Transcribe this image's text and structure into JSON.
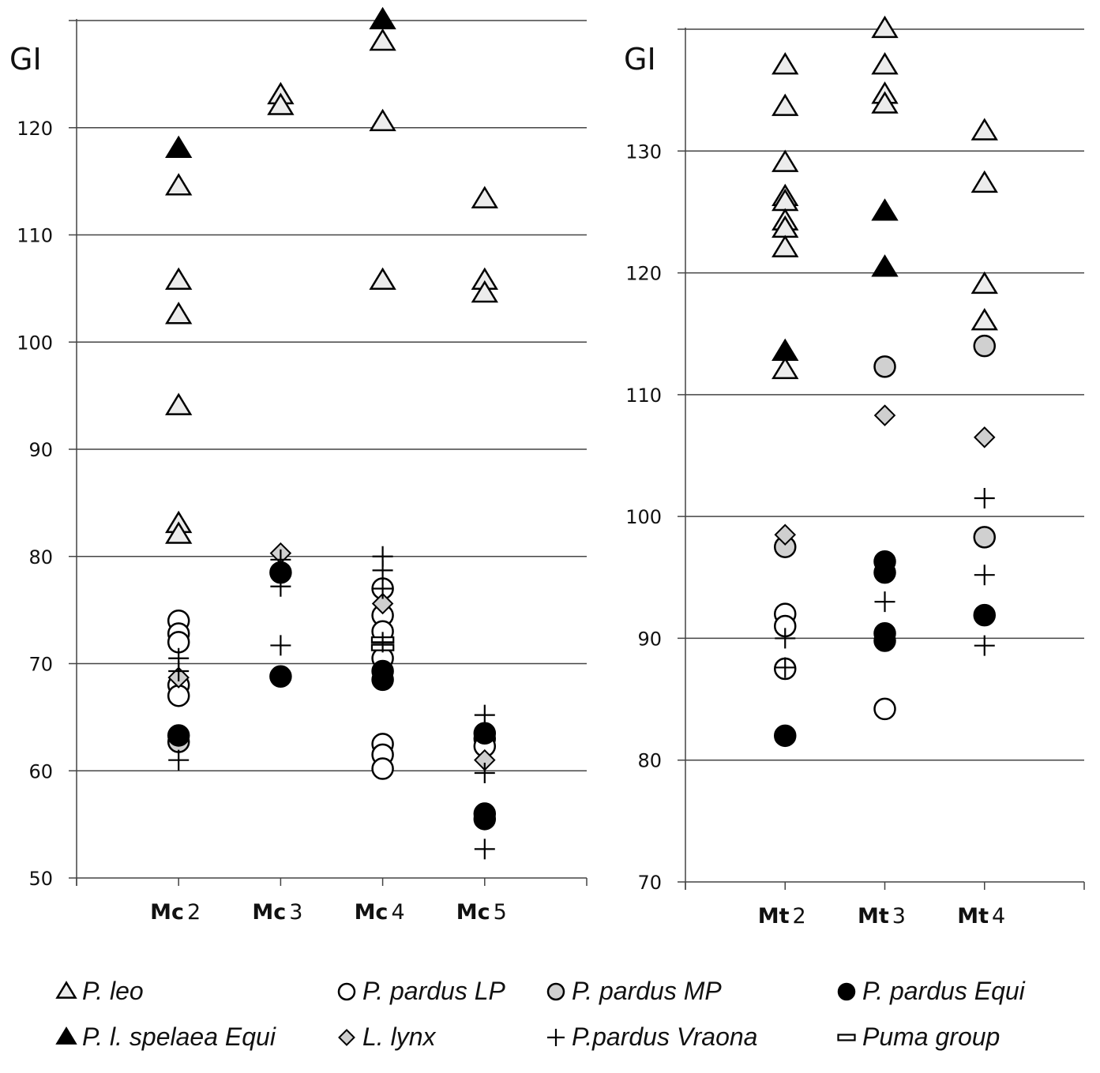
{
  "chart_data": [
    {
      "type": "scatter",
      "panel": "metacarpals",
      "ylabel": "GI",
      "xlabel": "",
      "title": "",
      "ylim": [
        50,
        130
      ],
      "yticks": [
        50,
        60,
        70,
        80,
        90,
        100,
        110,
        120
      ],
      "grid": true,
      "categories": [
        "Mc 2",
        "Mc 3",
        "Mc 4",
        "Mc 5"
      ],
      "series": [
        {
          "name": "P. leo",
          "values": {
            "Mc 2": [
              114.5,
              105.7,
              102.5,
              94,
              83,
              82
            ],
            "Mc 3": [
              123,
              122
            ],
            "Mc 4": [
              128,
              120.5,
              105.7
            ],
            "Mc 5": [
              113.3,
              105.7,
              104.5
            ]
          }
        },
        {
          "name": "P. l. spelaea Equi",
          "values": {
            "Mc 2": [
              118
            ],
            "Mc 3": [],
            "Mc 4": [
              130
            ],
            "Mc 5": []
          }
        },
        {
          "name": "P. pardus LP",
          "values": {
            "Mc 2": [
              74,
              72.8,
              72,
              68,
              67
            ],
            "Mc 3": [],
            "Mc 4": [
              77,
              74.5,
              73,
              70.5,
              62.5,
              61.5,
              60.2
            ],
            "Mc 5": [
              63,
              62.3
            ]
          }
        },
        {
          "name": "P. pardus MP",
          "values": {
            "Mc 2": [
              62.7
            ],
            "Mc 3": [],
            "Mc 4": [],
            "Mc 5": []
          }
        },
        {
          "name": "P. pardus Equi",
          "values": {
            "Mc 2": [
              63.3
            ],
            "Mc 3": [
              78.5,
              68.8
            ],
            "Mc 4": [
              69.3,
              68.5
            ],
            "Mc 5": [
              63.5,
              56,
              55.5
            ]
          }
        },
        {
          "name": "L. lynx",
          "values": {
            "Mc 2": [
              68.7
            ],
            "Mc 3": [
              80.3
            ],
            "Mc 4": [
              75.6
            ],
            "Mc 5": [
              61
            ]
          }
        },
        {
          "name": "P.pardus Vraona",
          "values": {
            "Mc 2": [
              70.5,
              69.3,
              61
            ],
            "Mc 3": [
              79.7,
              77.2,
              71.7
            ],
            "Mc 4": [
              80,
              78.7,
              77,
              72
            ],
            "Mc 5": [
              65.2,
              59.8,
              52.7
            ]
          }
        },
        {
          "name": "Puma group",
          "values": {
            "Mc 2": [],
            "Mc 3": [],
            "Mc 4": [
              72.2,
              71.5
            ],
            "Mc 5": []
          }
        }
      ]
    },
    {
      "type": "scatter",
      "panel": "metatarsals",
      "ylabel": "GI",
      "xlabel": "",
      "title": "",
      "ylim": [
        70,
        140
      ],
      "yticks": [
        70,
        80,
        90,
        100,
        110,
        120,
        130
      ],
      "grid": true,
      "categories": [
        "Mt 2",
        "Mt 3",
        "Mt 4"
      ],
      "series": [
        {
          "name": "P. leo",
          "values": {
            "Mt 2": [
              137,
              133.6,
              129,
              126.2,
              125.8,
              124.2,
              123.6,
              122,
              112
            ],
            "Mt 3": [
              140,
              137,
              134.6,
              133.8
            ],
            "Mt 4": [
              131.6,
              127.3,
              119,
              116
            ]
          }
        },
        {
          "name": "P. l. spelaea Equi",
          "values": {
            "Mt 2": [
              113.5
            ],
            "Mt 3": [
              125,
              120.4
            ],
            "Mt 4": []
          }
        },
        {
          "name": "P. pardus LP",
          "values": {
            "Mt 2": [
              92,
              91,
              87.5
            ],
            "Mt 3": [
              84.2
            ],
            "Mt 4": []
          }
        },
        {
          "name": "P. pardus MP",
          "values": {
            "Mt 2": [
              97.5
            ],
            "Mt 3": [
              112.3
            ],
            "Mt 4": [
              114,
              98.3
            ]
          }
        },
        {
          "name": "P. pardus Equi",
          "values": {
            "Mt 2": [
              82
            ],
            "Mt 3": [
              96.3,
              95.4,
              90.4,
              89.8
            ],
            "Mt 4": [
              91.9
            ]
          }
        },
        {
          "name": "L. lynx",
          "values": {
            "Mt 2": [
              98.5
            ],
            "Mt 3": [
              108.3
            ],
            "Mt 4": [
              106.5
            ]
          }
        },
        {
          "name": "P.pardus Vraona",
          "values": {
            "Mt 2": [
              90,
              87.6
            ],
            "Mt 3": [
              93
            ],
            "Mt 4": [
              101.5,
              95.2,
              89.4
            ]
          }
        },
        {
          "name": "Puma group",
          "values": {
            "Mt 2": [],
            "Mt 3": [],
            "Mt 4": []
          }
        }
      ]
    }
  ],
  "legend": {
    "placement": "bottom",
    "items": [
      {
        "label": "P. leo",
        "marker": "open-triangle"
      },
      {
        "label": "P. pardus LP",
        "marker": "open-circle"
      },
      {
        "label": "P. pardus MP",
        "marker": "grey-circle"
      },
      {
        "label": "P. pardus Equi",
        "marker": "filled-circle"
      },
      {
        "label": "P. l. spelaea Equi",
        "marker": "filled-triangle"
      },
      {
        "label": "L. lynx",
        "marker": "grey-diamond"
      },
      {
        "label": "P.pardus Vraona",
        "marker": "plus"
      },
      {
        "label": "Puma group",
        "marker": "bar"
      }
    ]
  },
  "markers": {
    "P. leo": {
      "shape": "triangle",
      "fill": "#ececec",
      "stroke": "#000000"
    },
    "P. l. spelaea Equi": {
      "shape": "triangle",
      "fill": "#000000",
      "stroke": "#000000"
    },
    "P. pardus LP": {
      "shape": "circle",
      "fill": "#ffffff",
      "stroke": "#000000"
    },
    "P. pardus MP": {
      "shape": "circle",
      "fill": "#d0d0d0",
      "stroke": "#000000"
    },
    "P. pardus Equi": {
      "shape": "circle",
      "fill": "#000000",
      "stroke": "#000000"
    },
    "L. lynx": {
      "shape": "diamond",
      "fill": "#cfcfcf",
      "stroke": "#000000"
    },
    "P.pardus Vraona": {
      "shape": "plus",
      "fill": "none",
      "stroke": "#000000"
    },
    "Puma group": {
      "shape": "bar",
      "fill": "#ffffff",
      "stroke": "#000000"
    }
  }
}
